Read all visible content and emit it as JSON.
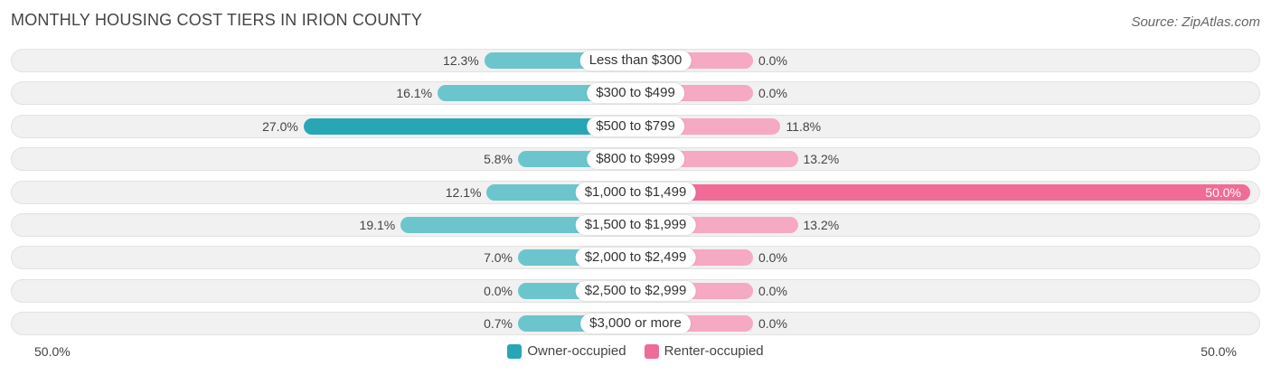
{
  "title": "MONTHLY HOUSING COST TIERS IN IRION COUNTY",
  "source": "Source: ZipAtlas.com",
  "colors": {
    "owner": "#6cc5cc",
    "owner_strong": "#27a7b6",
    "renter": "#f6a9c3",
    "renter_strong": "#f06b96"
  },
  "chart_data": {
    "type": "bar",
    "orientation": "horizontal-diverging",
    "categories": [
      "Less than $300",
      "$300 to $499",
      "$500 to $799",
      "$800 to $999",
      "$1,000 to $1,499",
      "$1,500 to $1,999",
      "$2,000 to $2,499",
      "$2,500 to $2,999",
      "$3,000 or more"
    ],
    "series": [
      {
        "name": "Owner-occupied",
        "values": [
          12.3,
          16.1,
          27.0,
          5.8,
          12.1,
          19.1,
          7.0,
          0.0,
          0.7
        ],
        "labels": [
          "12.3%",
          "16.1%",
          "27.0%",
          "5.8%",
          "12.1%",
          "19.1%",
          "7.0%",
          "0.0%",
          "0.7%"
        ]
      },
      {
        "name": "Renter-occupied",
        "values": [
          0.0,
          0.0,
          11.8,
          13.2,
          50.0,
          13.2,
          0.0,
          0.0,
          0.0
        ],
        "labels": [
          "0.0%",
          "0.0%",
          "11.8%",
          "13.2%",
          "50.0%",
          "13.2%",
          "0.0%",
          "0.0%",
          "0.0%"
        ]
      }
    ],
    "xlim": [
      -50,
      50
    ],
    "axis_labels": {
      "left": "50.0%",
      "right": "50.0%"
    },
    "legend": "bottom-center"
  }
}
